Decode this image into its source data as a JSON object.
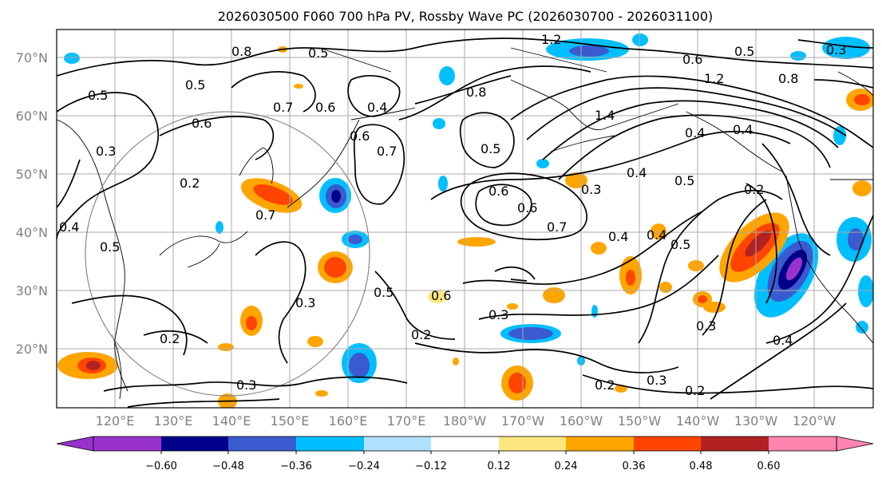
{
  "title": "2026030500 F060 700 hPa PV, Rossby Wave PC (2026030700 - 2026031100)",
  "lon_labels": [
    "120°E",
    "130°E",
    "140°E",
    "150°E",
    "160°E",
    "170°E",
    "180°W",
    "170°W",
    "160°W",
    "150°W",
    "140°W",
    "130°W",
    "120°W"
  ],
  "lat_labels": [
    "70°N",
    "60°N",
    "50°N",
    "40°N",
    "30°N",
    "20°N"
  ],
  "colorbar": {
    "ticks": [
      "−0.60",
      "−0.48",
      "−0.36",
      "−0.24",
      "−0.12",
      "0.12",
      "0.24",
      "0.36",
      "0.48",
      "0.60"
    ],
    "colors": [
      "#9932cc",
      "#00008b",
      "#3a5bd0",
      "#00bfff",
      "#b0e2ff",
      "#ffffff",
      "#ffe680",
      "#ffa500",
      "#ff4500",
      "#b22222",
      "#ff85b0"
    ]
  },
  "contour_labels": [
    "1.2",
    "0.8",
    "0.5",
    "0.6",
    "0.8",
    "1.2",
    "0.5",
    "0.5",
    "0.4",
    "0.8",
    "0.6",
    "0.3",
    "0.4",
    "0.6",
    "0.7",
    "0.5",
    "0.6",
    "0.7",
    "0.4",
    "0.6",
    "0.5",
    "0.4",
    "0.3",
    "0.2",
    "0.5",
    "0.4",
    "0.3",
    "0.2",
    "0.6",
    "0.5",
    "0.3",
    "0.2",
    "0.3",
    "0.2",
    "0.2",
    "0.3",
    "0.4",
    "0.3",
    "0.2",
    "0.7",
    "1.4",
    "0.4",
    "0.6",
    "0.5",
    "0.4",
    "0.5",
    "0.7",
    "0.3"
  ]
}
